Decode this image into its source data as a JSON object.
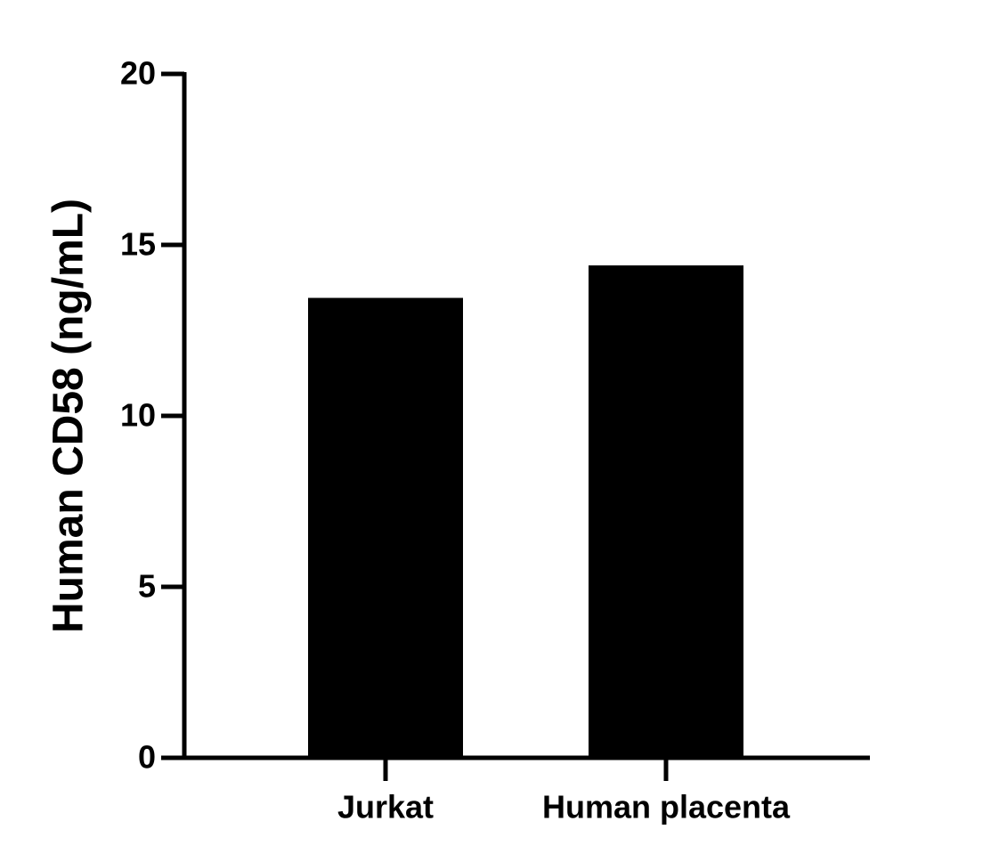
{
  "chart_data": {
    "type": "bar",
    "y_label": "Human CD58 (ng/mL)",
    "categories": [
      "Jurkat",
      "Human placenta"
    ],
    "values": [
      13.45,
      14.4
    ],
    "color": "#000000",
    "ylim": [
      0,
      20
    ],
    "yticks": [
      0,
      5,
      10,
      15,
      20
    ]
  }
}
